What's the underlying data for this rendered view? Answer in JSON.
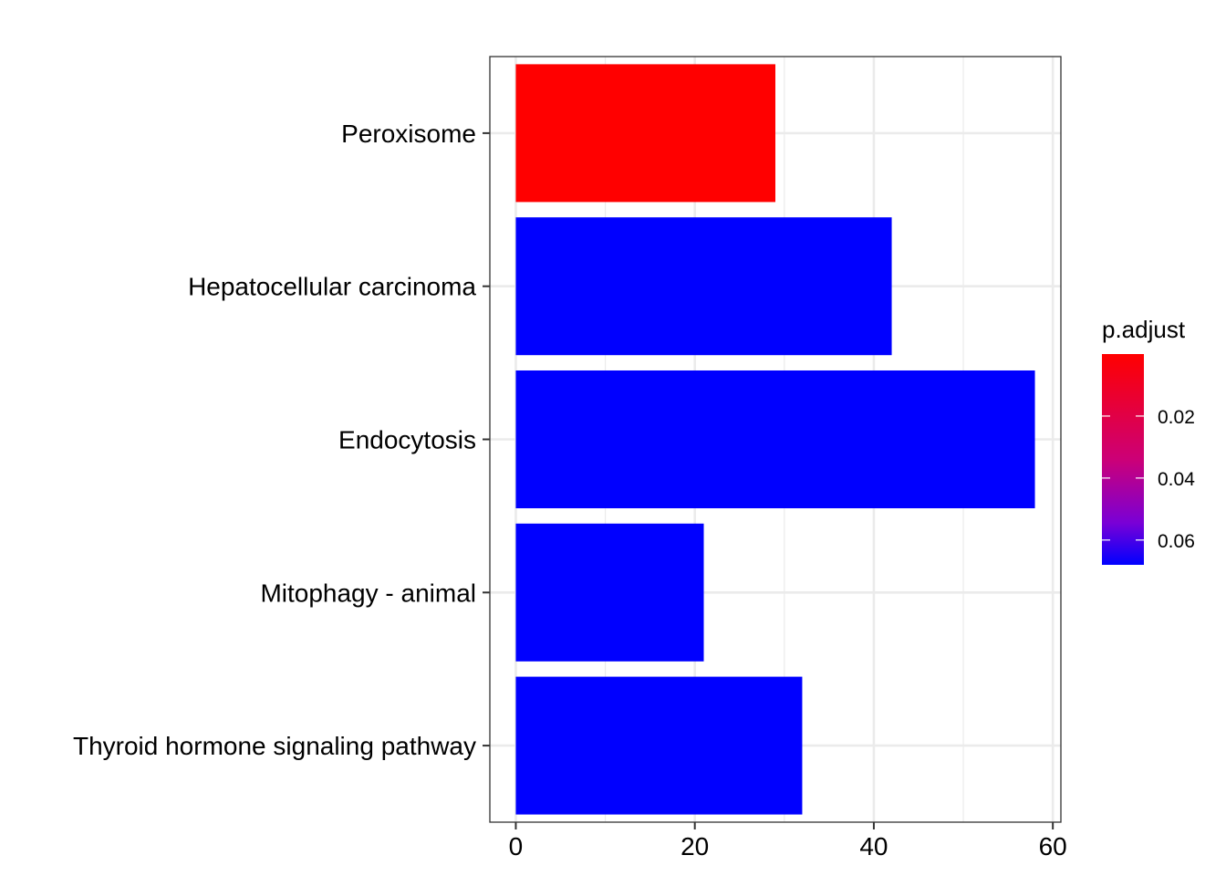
{
  "chart_data": {
    "type": "bar",
    "orientation": "horizontal",
    "categories": [
      "Peroxisome",
      "Hepatocellular carcinoma",
      "Endocytosis",
      "Mitophagy - animal",
      "Thyroid hormone signaling pathway"
    ],
    "values": [
      29,
      42,
      58,
      21,
      32
    ],
    "p_adjust": [
      0.0,
      0.068,
      0.068,
      0.068,
      0.068
    ],
    "bar_colors": [
      "#ff0000",
      "#0000ff",
      "#0000ff",
      "#0000ff",
      "#0000ff"
    ],
    "xlim": [
      -2.9,
      60.9
    ],
    "x_ticks": [
      0,
      20,
      40,
      60
    ],
    "x_tick_labels": [
      "0",
      "20",
      "40",
      "60"
    ],
    "grid": true,
    "legend": {
      "title": "p.adjust",
      "position": "right",
      "colors": {
        "low": "#ff0000",
        "mid": "#9900cc",
        "high": "#0000ff"
      },
      "range": [
        0.0,
        0.068
      ],
      "ticks": [
        0.02,
        0.04,
        0.06
      ],
      "tick_labels": [
        "0.02",
        "0.04",
        "0.06"
      ]
    }
  }
}
